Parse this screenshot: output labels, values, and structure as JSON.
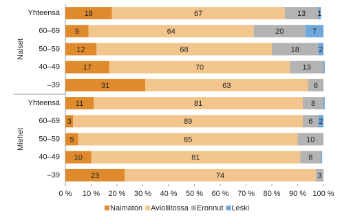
{
  "chart_data": {
    "type": "stacked-barh",
    "categories": [
      "Yhteensä",
      "60–69",
      "50–59",
      "40–49",
      "–39",
      "Yhteensä",
      "60–69",
      "50–59",
      "40–49",
      "–39"
    ],
    "groups": [
      {
        "name": "Naiset"
      },
      {
        "name": "Miehet"
      }
    ],
    "series": [
      {
        "name": "Naimaton",
        "color": "#e08a2e",
        "values": [
          18,
          9,
          12,
          17,
          31,
          11,
          3,
          5,
          10,
          23
        ]
      },
      {
        "name": "Avioliitossa",
        "color": "#f2c58c",
        "values": [
          67,
          64,
          68,
          70,
          63,
          81,
          89,
          85,
          81,
          74
        ]
      },
      {
        "name": "Eronnut",
        "color": "#b3b3b3",
        "values": [
          13,
          20,
          18,
          13,
          6,
          8,
          6,
          10,
          8,
          3
        ]
      },
      {
        "name": "Leski",
        "color": "#6fa8dc",
        "values": [
          1,
          7,
          2,
          0.5,
          0,
          0.5,
          2,
          0,
          0.5,
          0
        ]
      }
    ],
    "xlim": [
      0,
      100
    ],
    "xticks": [
      {
        "value": 0,
        "label": "0 %"
      },
      {
        "value": 10,
        "label": "10 %"
      },
      {
        "value": 20,
        "label": "20 %"
      },
      {
        "value": 30,
        "label": "30 %"
      },
      {
        "value": 40,
        "label": "40 %"
      },
      {
        "value": 50,
        "label": "50 %"
      },
      {
        "value": 60,
        "label": "60 %"
      },
      {
        "value": 70,
        "label": "70 %"
      },
      {
        "value": 80,
        "label": "80 %"
      },
      {
        "value": 90,
        "label": "90 %"
      },
      {
        "value": 100,
        "label": "100 %"
      }
    ],
    "legend": "bottom"
  }
}
